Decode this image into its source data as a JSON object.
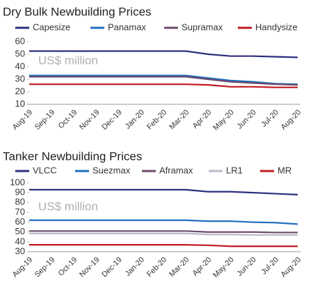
{
  "chart_data": [
    {
      "type": "line",
      "title": "Dry Bulk Newbuilding Prices",
      "annotation": "US$ million",
      "categories": [
        "Aug-19",
        "Sep-19",
        "Oct-19",
        "Nov-19",
        "Dec-19",
        "Jan-20",
        "Feb-20",
        "Mar-20",
        "Apr-20",
        "May-20",
        "Jun-20",
        "Jul-20",
        "Aug-20"
      ],
      "ylim": [
        10,
        60
      ],
      "yticks": [
        10,
        20,
        30,
        40,
        50,
        60
      ],
      "series": [
        {
          "name": "Capesize",
          "color": "#2b2e7f",
          "values": [
            52.5,
            52.5,
            52.5,
            52.5,
            52.5,
            52.5,
            52.5,
            52.5,
            50,
            48.5,
            48.5,
            48,
            47.5
          ]
        },
        {
          "name": "Panamax",
          "color": "#1f6fc0",
          "values": [
            33,
            33,
            33,
            33,
            33,
            33,
            33,
            33,
            31,
            29,
            28,
            26.5,
            26
          ]
        },
        {
          "name": "Supramax",
          "color": "#6b4a6b",
          "values": [
            32,
            32,
            32,
            32,
            32,
            32,
            32,
            32,
            30,
            28,
            27,
            26,
            25.5
          ]
        },
        {
          "name": "Handysize",
          "color": "#c0191f",
          "values": [
            26,
            26,
            26,
            26,
            26,
            26,
            26,
            26,
            25.5,
            24,
            24,
            23.5,
            23.5
          ]
        }
      ]
    },
    {
      "type": "line",
      "title": "Tanker Newbuilding Prices",
      "annotation": "US$ million",
      "categories": [
        "Aug-19",
        "Sep-19",
        "Oct-19",
        "Nov-19",
        "Dec-19",
        "Jan-20",
        "Feb-20",
        "Mar-20",
        "Apr-20",
        "May-20",
        "Jun-20",
        "Jul-20",
        "Aug-20"
      ],
      "ylim": [
        30,
        100
      ],
      "yticks": [
        30,
        40,
        50,
        60,
        70,
        80,
        90,
        100
      ],
      "series": [
        {
          "name": "VLCC",
          "color": "#2b2e7f",
          "values": [
            93,
            93,
            93,
            93,
            93,
            93,
            93,
            93,
            91,
            91,
            90,
            89,
            88
          ]
        },
        {
          "name": "Suezmax",
          "color": "#1f6fc0",
          "values": [
            62,
            62,
            62,
            62,
            62,
            62,
            62,
            62,
            61,
            61,
            60,
            59.5,
            58
          ]
        },
        {
          "name": "Aframax",
          "color": "#6b4a6b",
          "values": [
            51,
            51,
            51,
            51,
            51,
            51,
            51,
            51,
            50,
            50,
            50,
            49.5,
            49.5
          ]
        },
        {
          "name": "LR1",
          "color": "#b8b8c8",
          "values": [
            48.5,
            48.5,
            48.5,
            48.5,
            48.5,
            48.5,
            48.5,
            48.5,
            47.5,
            47.5,
            47,
            47,
            47
          ]
        },
        {
          "name": "MR",
          "color": "#c0191f",
          "values": [
            37,
            37,
            37,
            37,
            37,
            37,
            37,
            37,
            36.5,
            35.5,
            35.5,
            35.5,
            35.5
          ]
        }
      ]
    }
  ]
}
